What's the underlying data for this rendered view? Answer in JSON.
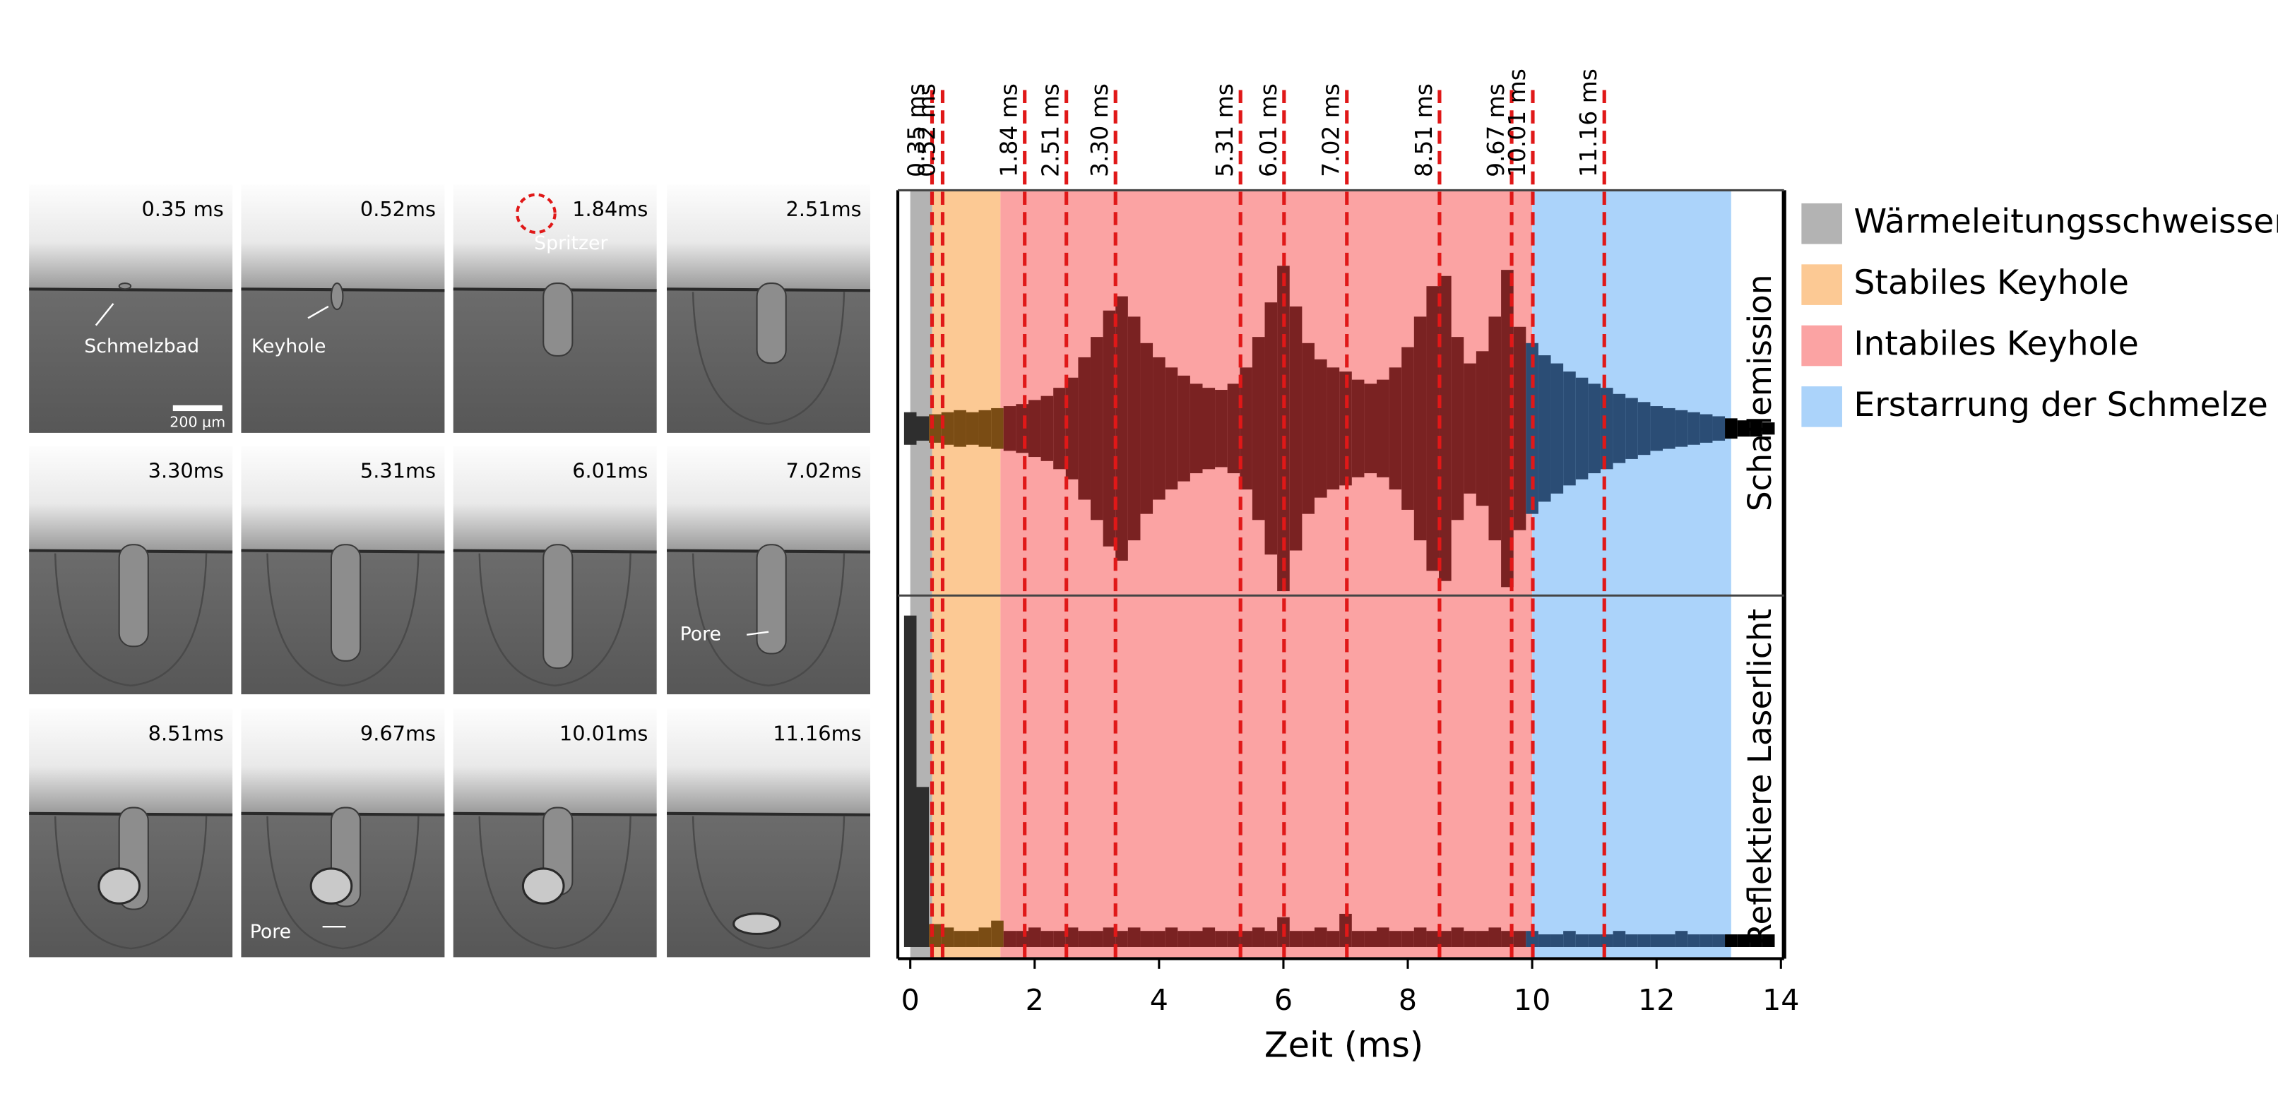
{
  "images": {
    "scale_bar": "200 µm",
    "panels": [
      {
        "time": "0.35 ms",
        "notes": [
          "Schmelzbad"
        ]
      },
      {
        "time": "0.52ms",
        "notes": [
          "Keyhole"
        ]
      },
      {
        "time": "1.84ms",
        "notes": [
          "Spritzer"
        ]
      },
      {
        "time": "2.51ms",
        "notes": []
      },
      {
        "time": "3.30ms",
        "notes": []
      },
      {
        "time": "5.31ms",
        "notes": []
      },
      {
        "time": "6.01ms",
        "notes": []
      },
      {
        "time": "7.02ms",
        "notes": [
          "Pore"
        ]
      },
      {
        "time": "8.51ms",
        "notes": []
      },
      {
        "time": "9.67ms",
        "notes": [
          "Pore"
        ]
      },
      {
        "time": "10.01ms",
        "notes": []
      },
      {
        "time": "11.16ms",
        "notes": []
      }
    ]
  },
  "chart_data": {
    "type": "waveform",
    "x_label": "Zeit (ms)",
    "xlim": [
      -0.2,
      14.05
    ],
    "xticks": [
      0,
      2,
      4,
      6,
      8,
      10,
      12,
      14
    ],
    "regions": [
      {
        "name": "Wärmeleitungsschweissen",
        "color": "#b3b3b3",
        "wave_color": "#2e2e2e",
        "start": 0,
        "end": 0.35
      },
      {
        "name": "Stabiles Keyhole",
        "color": "#fcc994",
        "wave_color": "#7a4c14",
        "start": 0.35,
        "end": 1.45
      },
      {
        "name": "Intabiles Keyhole",
        "color": "#fba3a3",
        "wave_color": "#7a2222",
        "start": 1.45,
        "end": 10.0
      },
      {
        "name": "Erstarrung der Schmelze",
        "color": "#abd3fa",
        "wave_color": "#2b4d75",
        "start": 10.0,
        "end": 13.2
      }
    ],
    "markers": [
      {
        "value": 0.35,
        "label": "0.35 ms"
      },
      {
        "value": 0.52,
        "label": "0.52 ms"
      },
      {
        "value": 1.84,
        "label": "1.84 ms"
      },
      {
        "value": 2.51,
        "label": "2.51 ms"
      },
      {
        "value": 3.3,
        "label": "3.30 ms"
      },
      {
        "value": 5.31,
        "label": "5.31 ms"
      },
      {
        "value": 6.01,
        "label": "6.01 ms"
      },
      {
        "value": 7.02,
        "label": "7.02 ms"
      },
      {
        "value": 8.51,
        "label": "8.51 ms"
      },
      {
        "value": 9.67,
        "label": "9.67 ms"
      },
      {
        "value": 10.01,
        "label": "10.01 ms"
      },
      {
        "value": 11.16,
        "label": "11.16 ms"
      }
    ],
    "marker_color": "#e01818",
    "series": [
      {
        "name": "Schallemission",
        "x": [
          0,
          0.2,
          0.4,
          0.6,
          0.8,
          1.0,
          1.2,
          1.4,
          1.6,
          1.8,
          2.0,
          2.2,
          2.4,
          2.6,
          2.8,
          3.0,
          3.2,
          3.4,
          3.6,
          3.8,
          4.0,
          4.2,
          4.4,
          4.6,
          4.8,
          5.0,
          5.2,
          5.4,
          5.6,
          5.8,
          6.0,
          6.2,
          6.4,
          6.6,
          6.8,
          7.0,
          7.2,
          7.4,
          7.6,
          7.8,
          8.0,
          8.2,
          8.4,
          8.6,
          8.8,
          9.0,
          9.2,
          9.4,
          9.6,
          9.8,
          10.0,
          10.2,
          10.4,
          10.6,
          10.8,
          11.0,
          11.2,
          11.4,
          11.6,
          11.8,
          12.0,
          12.2,
          12.4,
          12.6,
          12.8,
          13.0,
          13.2,
          13.4,
          13.6,
          13.8
        ],
        "values": [
          0.08,
          0.06,
          0.07,
          0.08,
          0.09,
          0.08,
          0.09,
          0.1,
          0.11,
          0.12,
          0.14,
          0.16,
          0.2,
          0.25,
          0.35,
          0.45,
          0.58,
          0.65,
          0.55,
          0.42,
          0.35,
          0.3,
          0.26,
          0.22,
          0.2,
          0.19,
          0.22,
          0.3,
          0.45,
          0.62,
          0.8,
          0.6,
          0.42,
          0.34,
          0.3,
          0.28,
          0.24,
          0.22,
          0.24,
          0.3,
          0.4,
          0.55,
          0.7,
          0.75,
          0.45,
          0.32,
          0.38,
          0.55,
          0.78,
          0.5,
          0.42,
          0.36,
          0.32,
          0.28,
          0.25,
          0.22,
          0.2,
          0.17,
          0.15,
          0.13,
          0.11,
          0.1,
          0.09,
          0.08,
          0.07,
          0.06,
          0.05,
          0.04,
          0.04,
          0.03
        ]
      },
      {
        "name": "Reflektiere Laserlicht",
        "x": [
          0,
          0.2,
          0.4,
          0.6,
          0.8,
          1.0,
          1.2,
          1.4,
          1.6,
          1.8,
          2.0,
          2.2,
          2.4,
          2.6,
          2.8,
          3.0,
          3.2,
          3.4,
          3.6,
          3.8,
          4.0,
          4.2,
          4.4,
          4.6,
          4.8,
          5.0,
          5.2,
          5.4,
          5.6,
          5.8,
          6.0,
          6.2,
          6.4,
          6.6,
          6.8,
          7.0,
          7.2,
          7.4,
          7.6,
          7.8,
          8.0,
          8.2,
          8.4,
          8.6,
          8.8,
          9.0,
          9.2,
          9.4,
          9.6,
          9.8,
          10.0,
          10.2,
          10.4,
          10.6,
          10.8,
          11.0,
          11.2,
          11.4,
          11.6,
          11.8,
          12.0,
          12.2,
          12.4,
          12.6,
          12.8,
          13.0,
          13.2,
          13.4,
          13.6,
          13.8
        ],
        "values": [
          0.95,
          0.45,
          0.05,
          0.04,
          0.03,
          0.03,
          0.04,
          0.06,
          0.03,
          0.03,
          0.04,
          0.03,
          0.03,
          0.04,
          0.03,
          0.03,
          0.04,
          0.03,
          0.04,
          0.03,
          0.03,
          0.04,
          0.03,
          0.03,
          0.04,
          0.03,
          0.03,
          0.03,
          0.04,
          0.03,
          0.07,
          0.03,
          0.03,
          0.04,
          0.03,
          0.08,
          0.03,
          0.03,
          0.04,
          0.03,
          0.03,
          0.04,
          0.03,
          0.03,
          0.04,
          0.03,
          0.03,
          0.04,
          0.03,
          0.03,
          0.03,
          0.02,
          0.02,
          0.03,
          0.02,
          0.02,
          0.02,
          0.03,
          0.02,
          0.02,
          0.02,
          0.02,
          0.03,
          0.02,
          0.02,
          0.02,
          0.02,
          0.02,
          0.02,
          0.02
        ]
      }
    ]
  }
}
